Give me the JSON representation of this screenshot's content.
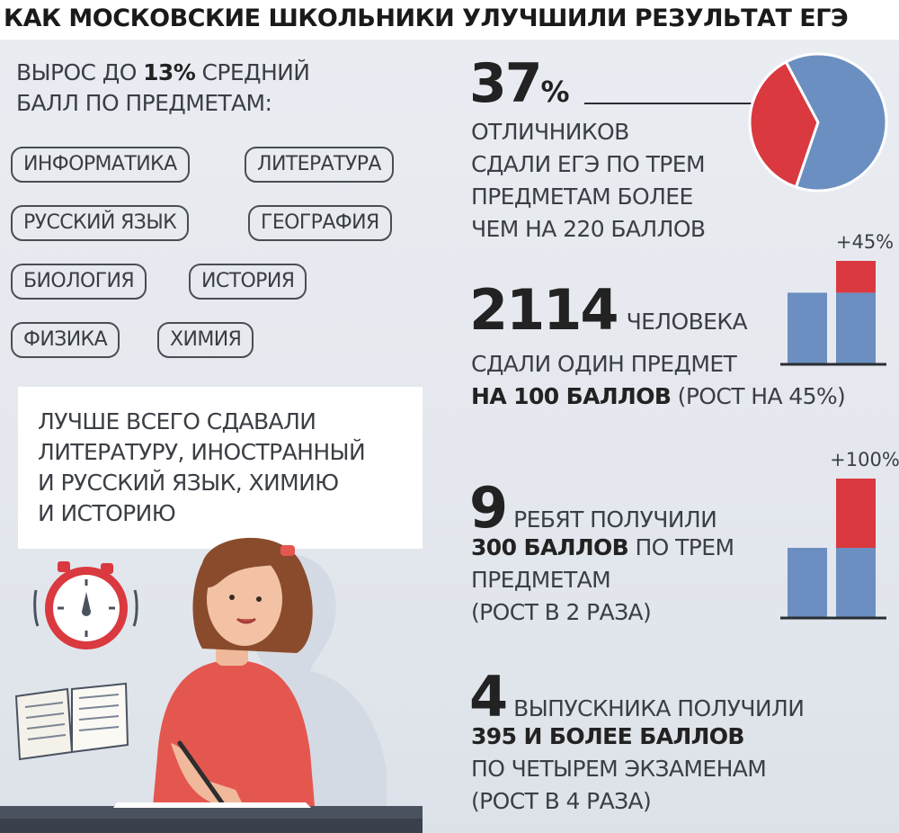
{
  "title": "КАК МОСКОВСКИЕ ШКОЛЬНИКИ УЛУЧШИЛИ РЕЗУЛЬТАТ ЕГЭ",
  "growth": {
    "line1_pre": "ВЫРОС ДО ",
    "line1_value": "13%",
    "line1_post": " СРЕДНИЙ",
    "line2": "БАЛЛ ПО ПРЕДМЕТАМ:"
  },
  "subjects": [
    "ИНФОРМАТИКА",
    "ЛИТЕРАТУРА",
    "РУССКИЙ ЯЗЫК",
    "ГЕОГРАФИЯ",
    "БИОЛОГИЯ",
    "ИСТОРИЯ",
    "ФИЗИКА",
    "ХИМИЯ"
  ],
  "note": [
    "ЛУЧШЕ ВСЕГО СДАВАЛИ",
    "ЛИТЕРАТУРУ, ИНОСТРАННЫЙ",
    "И РУССКИЙ ЯЗЫК, ХИМИЮ",
    "И ИСТОРИЮ"
  ],
  "stat1": {
    "number": "37",
    "unit": "%",
    "lines": [
      "ОТЛИЧНИКОВ",
      "СДАЛИ ЕГЭ ПО ТРЕМ",
      "ПРЕДМЕТАМ БОЛЕЕ",
      "ЧЕМ НА 220 БАЛЛОВ"
    ]
  },
  "stat2": {
    "number": "2114",
    "tail": "ЧЕЛОВЕКА",
    "line2": "СДАЛИ ОДИН ПРЕДМЕТ",
    "line3_bold": "НА 100 БАЛЛОВ",
    "line3_rest": " (РОСТ НА 45%)"
  },
  "stat3": {
    "number": "9",
    "tail": "РЕБЯТ ПОЛУЧИЛИ",
    "line2_bold": "300 БАЛЛОВ",
    "line2_rest": " ПО ТРЕМ",
    "line3": "ПРЕДМЕТАМ",
    "line4": "(РОСТ В 2 РАЗА)"
  },
  "stat4": {
    "number": "4",
    "tail": "ВЫПУСКНИКА ПОЛУЧИЛИ",
    "line2_bold": "395 И БОЛЕЕ БАЛЛОВ",
    "line3": "ПО ЧЕТЫРЕМ ЭКЗАМЕНАМ",
    "line4": "(РОСТ В 4 РАЗА)"
  },
  "colors": {
    "blue": "#6b8fc0",
    "red": "#d9393f",
    "background": "#e7ebf0",
    "text": "#3b3f45"
  },
  "chart_data": [
    {
      "type": "pie",
      "slices": [
        {
          "value": 37,
          "color": "#d9393f"
        },
        {
          "value": 63,
          "color": "#6b8fc0"
        }
      ]
    },
    {
      "type": "bar",
      "categories": [
        "",
        ""
      ],
      "base": [
        1,
        1
      ],
      "increase": [
        0,
        0.45
      ],
      "ylim": [
        0,
        1.45
      ],
      "label": "+45%"
    },
    {
      "type": "bar",
      "categories": [
        "",
        ""
      ],
      "base": [
        1,
        1
      ],
      "increase": [
        0,
        1.0
      ],
      "ylim": [
        0,
        2.0
      ],
      "label": "+100%"
    }
  ]
}
